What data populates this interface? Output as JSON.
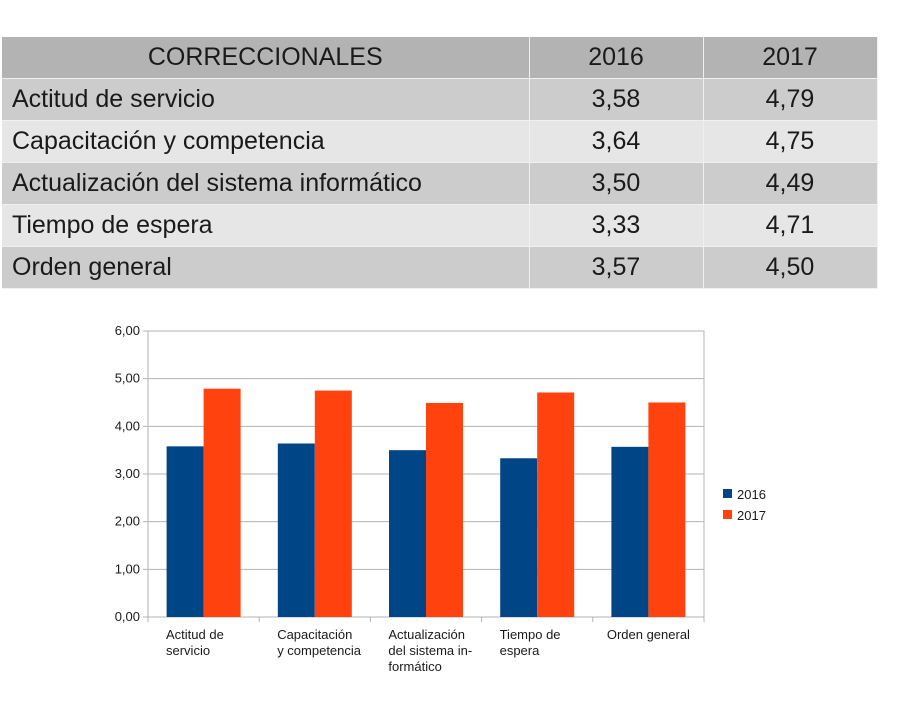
{
  "table": {
    "headers": [
      "CORRECCIONALES",
      "2016",
      "2017"
    ],
    "rows": [
      {
        "label": "Actitud de servicio",
        "v2016": "3,58",
        "v2017": "4,79"
      },
      {
        "label": "Capacitación y competencia",
        "v2016": "3,64",
        "v2017": "4,75"
      },
      {
        "label": "Actualización del sistema informático",
        "v2016": "3,50",
        "v2017": "4,49"
      },
      {
        "label": "Tiempo de espera",
        "v2016": "3,33",
        "v2017": "4,71"
      },
      {
        "label": "Orden general",
        "v2016": "3,57",
        "v2017": "4,50"
      }
    ]
  },
  "chart_data": {
    "type": "bar",
    "categories": [
      [
        "Actitud de",
        "servicio"
      ],
      [
        "Capacitación",
        "y competencia"
      ],
      [
        "Actualización",
        "del sistema in-",
        "formático"
      ],
      [
        "Tiempo de",
        "espera"
      ],
      [
        "Orden general"
      ]
    ],
    "series": [
      {
        "name": "2016",
        "color": "#004586",
        "values": [
          3.58,
          3.64,
          3.5,
          3.33,
          3.57
        ]
      },
      {
        "name": "2017",
        "color": "#ff420e",
        "values": [
          4.79,
          4.75,
          4.49,
          4.71,
          4.5
        ]
      }
    ],
    "ylim": [
      0,
      6
    ],
    "yticks": [
      "0,00",
      "1,00",
      "2,00",
      "3,00",
      "4,00",
      "5,00",
      "6,00"
    ],
    "grid": true,
    "legend": "right"
  }
}
